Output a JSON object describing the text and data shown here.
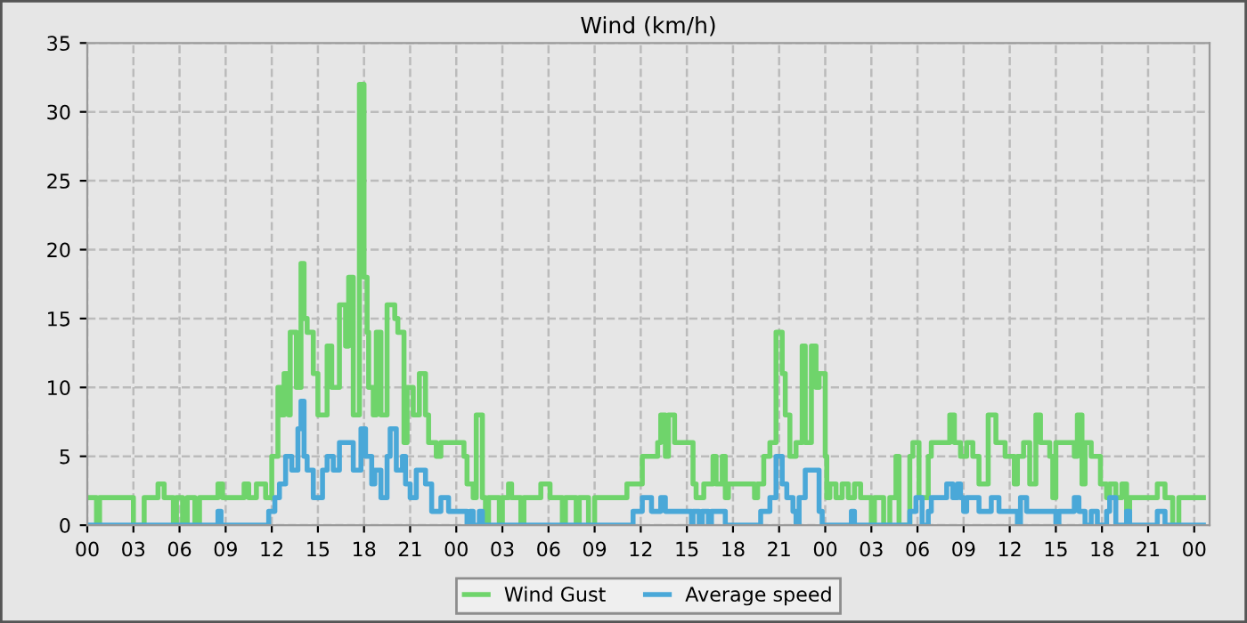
{
  "chart_data": {
    "type": "step",
    "title": "Wind (km/h)",
    "xlim": [
      0,
      73
    ],
    "xticks": [
      {
        "value": 0,
        "label": "00"
      },
      {
        "value": 3,
        "label": "03"
      },
      {
        "value": 6,
        "label": "06"
      },
      {
        "value": 9,
        "label": "09"
      },
      {
        "value": 12,
        "label": "12"
      },
      {
        "value": 15,
        "label": "15"
      },
      {
        "value": 18,
        "label": "18"
      },
      {
        "value": 21,
        "label": "21"
      },
      {
        "value": 24,
        "label": "00"
      },
      {
        "value": 27,
        "label": "03"
      },
      {
        "value": 30,
        "label": "06"
      },
      {
        "value": 33,
        "label": "09"
      },
      {
        "value": 36,
        "label": "12"
      },
      {
        "value": 39,
        "label": "15"
      },
      {
        "value": 42,
        "label": "18"
      },
      {
        "value": 45,
        "label": "21"
      },
      {
        "value": 48,
        "label": "00"
      },
      {
        "value": 51,
        "label": "03"
      },
      {
        "value": 54,
        "label": "06"
      },
      {
        "value": 57,
        "label": "09"
      },
      {
        "value": 60,
        "label": "12"
      },
      {
        "value": 63,
        "label": "15"
      },
      {
        "value": 66,
        "label": "18"
      },
      {
        "value": 69,
        "label": "21"
      },
      {
        "value": 72,
        "label": "00"
      }
    ],
    "ylim": [
      0,
      35
    ],
    "yticks": [
      0,
      5,
      10,
      15,
      20,
      25,
      30,
      35
    ],
    "grid": true,
    "legend": "bottom",
    "marker": "none",
    "line_style": "solid",
    "series": [
      {
        "name": "Wind Gust",
        "color": "#6fd46b",
        "x": [
          0,
          0.6,
          0.8,
          3.0,
          3.7,
          4.6,
          5.0,
          5.6,
          5.8,
          6.2,
          6.5,
          7.0,
          7.3,
          8.5,
          8.8,
          10.2,
          10.5,
          11.0,
          11.6,
          12.0,
          12.4,
          12.6,
          12.8,
          13.1,
          13.2,
          13.6,
          13.9,
          14.1,
          14.3,
          14.7,
          15.0,
          15.6,
          15.9,
          16.4,
          16.8,
          17.0,
          17.3,
          17.7,
          18.0,
          18.2,
          18.3,
          18.6,
          18.8,
          19.1,
          19.5,
          20.0,
          20.2,
          20.6,
          20.8,
          21.2,
          21.6,
          22.0,
          22.2,
          22.7,
          23.0,
          24.5,
          24.7,
          25.1,
          25.3,
          25.7,
          25.9,
          26.1,
          26.8,
          27.0,
          27.4,
          27.6,
          28.2,
          28.4,
          29.5,
          30.1,
          30.9,
          31.1,
          31.8,
          32.0,
          32.6,
          33.0,
          35.1,
          36.1,
          37.1,
          37.3,
          37.6,
          37.8,
          38.2,
          39.4,
          39.6,
          40.1,
          40.7,
          40.9,
          41.3,
          41.5,
          41.7,
          43.0,
          43.4,
          43.6,
          44.0,
          44.4,
          44.8,
          45.2,
          45.4,
          45.7,
          46.1,
          46.5,
          46.7,
          47.1,
          47.4,
          47.6,
          48.0,
          48.1,
          48.3,
          48.7,
          49.1,
          49.5,
          49.9,
          50.3,
          51.0,
          51.2,
          51.8,
          52.2,
          52.6,
          52.8,
          53.5,
          53.7,
          54.1,
          54.7,
          54.9,
          56.1,
          56.4,
          56.8,
          57.2,
          57.6,
          58.0,
          58.6,
          59.1,
          59.7,
          60.3,
          60.5,
          60.9,
          61.3,
          61.7,
          62.0,
          62.6,
          62.8,
          63.0,
          64.2,
          64.4,
          64.7,
          64.9,
          65.3,
          65.9,
          66.3,
          66.5,
          66.9,
          67.3,
          67.6,
          67.8,
          69.6,
          70.1,
          70.6,
          71.0,
          72.6
        ],
        "values": [
          2,
          0,
          2,
          0,
          2,
          3,
          2,
          0,
          2,
          0,
          2,
          0,
          2,
          3,
          2,
          3,
          2,
          3,
          2,
          5,
          10,
          8,
          11,
          8,
          14,
          10,
          19,
          15,
          14,
          11,
          8,
          13,
          10,
          16,
          13,
          18,
          8,
          32,
          18,
          14,
          10,
          8,
          14,
          8,
          16,
          15,
          14,
          6,
          10,
          8,
          11,
          8,
          6,
          5,
          6,
          5,
          3,
          2,
          8,
          2,
          0,
          2,
          0,
          2,
          3,
          2,
          0,
          2,
          3,
          2,
          0,
          2,
          0,
          2,
          0,
          2,
          3,
          5,
          6,
          8,
          5,
          8,
          6,
          3,
          2,
          3,
          5,
          3,
          5,
          2,
          3,
          3,
          2,
          3,
          5,
          6,
          14,
          11,
          8,
          5,
          6,
          13,
          6,
          13,
          10,
          11,
          5,
          2,
          3,
          2,
          3,
          2,
          3,
          2,
          0,
          2,
          0,
          2,
          5,
          0,
          5,
          6,
          2,
          5,
          6,
          8,
          6,
          5,
          6,
          5,
          3,
          8,
          6,
          5,
          3,
          5,
          6,
          3,
          8,
          6,
          5,
          2,
          6,
          5,
          8,
          3,
          6,
          5,
          3,
          2,
          3,
          2,
          3,
          0,
          2,
          3,
          2,
          0,
          2,
          2
        ]
      },
      {
        "name": "Average speed",
        "color": "#4aa8d8",
        "x": [
          0,
          8.5,
          8.7,
          11.8,
          12.2,
          12.5,
          12.9,
          13.3,
          13.7,
          13.9,
          14.1,
          14.3,
          14.7,
          15.3,
          15.6,
          16.0,
          16.4,
          17.3,
          17.8,
          18.1,
          18.5,
          18.7,
          19.1,
          19.5,
          19.7,
          20.1,
          20.5,
          20.7,
          21.0,
          21.4,
          22.0,
          22.4,
          23.0,
          23.5,
          24.5,
          24.7,
          24.9,
          25.1,
          25.5,
          25.7,
          35.5,
          36.1,
          36.7,
          37.3,
          37.6,
          39.2,
          39.3,
          39.4,
          39.8,
          40.0,
          40.4,
          40.6,
          41.5,
          43.8,
          44.4,
          44.8,
          45.2,
          45.5,
          45.9,
          46.1,
          46.3,
          46.7,
          47.6,
          47.8,
          49.7,
          49.9,
          53.5,
          53.9,
          54.3,
          54.7,
          54.9,
          55.9,
          56.3,
          56.6,
          56.8,
          57.0,
          57.2,
          58.0,
          58.8,
          59.3,
          60.5,
          60.7,
          61.1,
          63.0,
          63.2,
          64.2,
          64.5,
          64.9,
          65.3,
          65.7,
          66.3,
          66.5,
          66.9,
          67.6,
          67.8,
          69.6,
          70.1,
          72.6
        ],
        "values": [
          0,
          1,
          0,
          1,
          2,
          3,
          5,
          4,
          7,
          9,
          5,
          4,
          2,
          4,
          5,
          4,
          6,
          4,
          7,
          5,
          3,
          4,
          2,
          5,
          7,
          4,
          5,
          3,
          2,
          4,
          3,
          1,
          2,
          1,
          1,
          0,
          1,
          0,
          1,
          0,
          1,
          2,
          1,
          2,
          1,
          1,
          0,
          1,
          0,
          1,
          0,
          1,
          0,
          1,
          2,
          5,
          3,
          2,
          1,
          0,
          2,
          4,
          1,
          0,
          1,
          0,
          1,
          2,
          0,
          1,
          2,
          3,
          2,
          3,
          2,
          1,
          2,
          1,
          2,
          1,
          0,
          2,
          1,
          0,
          1,
          2,
          1,
          0,
          1,
          0,
          1,
          2,
          0,
          1,
          0,
          1,
          0,
          0
        ]
      }
    ]
  }
}
